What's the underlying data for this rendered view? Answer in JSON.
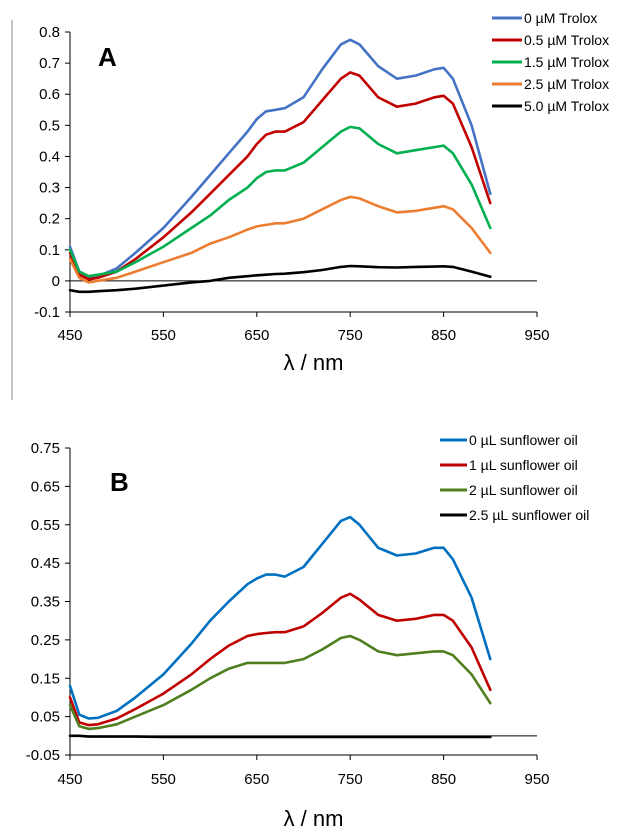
{
  "chart_data": [
    {
      "type": "line",
      "panel_label": "A",
      "xlabel": "λ / nm",
      "ylabel": "",
      "xlim": [
        450,
        950
      ],
      "ylim": [
        -0.1,
        0.8
      ],
      "x_ticks": [
        "450",
        "550",
        "650",
        "750",
        "850",
        "950"
      ],
      "y_ticks": [
        "-0.1",
        "0",
        "0.1",
        "0.2",
        "0.3",
        "0.4",
        "0.5",
        "0.6",
        "0.7",
        "0.8"
      ],
      "legend_position": "top-right",
      "grid": false,
      "x": [
        450,
        460,
        470,
        480,
        500,
        520,
        550,
        580,
        600,
        620,
        640,
        650,
        660,
        670,
        680,
        700,
        720,
        740,
        750,
        760,
        780,
        800,
        820,
        840,
        850,
        860,
        880,
        900
      ],
      "series": [
        {
          "name": "0 µM Trolox",
          "color": "#4472c4",
          "values": [
            0.11,
            0.03,
            0.01,
            0.015,
            0.04,
            0.09,
            0.17,
            0.27,
            0.34,
            0.41,
            0.48,
            0.52,
            0.545,
            0.55,
            0.555,
            0.59,
            0.68,
            0.76,
            0.775,
            0.76,
            0.69,
            0.65,
            0.66,
            0.68,
            0.685,
            0.65,
            0.5,
            0.28
          ]
        },
        {
          "name": "0.5 µM Trolox",
          "color": "#c00000",
          "values": [
            0.09,
            0.02,
            0.005,
            0.01,
            0.03,
            0.07,
            0.14,
            0.22,
            0.28,
            0.34,
            0.4,
            0.44,
            0.47,
            0.48,
            0.48,
            0.51,
            0.58,
            0.65,
            0.67,
            0.66,
            0.59,
            0.56,
            0.57,
            0.59,
            0.595,
            0.57,
            0.43,
            0.25
          ]
        },
        {
          "name": "1.5 µM Trolox",
          "color": "#00b050",
          "values": [
            0.1,
            0.03,
            0.015,
            0.02,
            0.03,
            0.06,
            0.11,
            0.17,
            0.21,
            0.26,
            0.3,
            0.33,
            0.35,
            0.355,
            0.355,
            0.38,
            0.43,
            0.48,
            0.495,
            0.49,
            0.44,
            0.41,
            0.42,
            0.43,
            0.435,
            0.41,
            0.31,
            0.17
          ]
        },
        {
          "name": "2.5 µM Trolox",
          "color": "#ed7d31",
          "values": [
            0.07,
            0.01,
            -0.005,
            0.0,
            0.01,
            0.03,
            0.06,
            0.09,
            0.12,
            0.14,
            0.165,
            0.175,
            0.18,
            0.185,
            0.185,
            0.2,
            0.23,
            0.26,
            0.27,
            0.265,
            0.24,
            0.22,
            0.225,
            0.235,
            0.24,
            0.23,
            0.17,
            0.09
          ]
        },
        {
          "name": "5.0 µM Trolox",
          "color": "#000000",
          "values": [
            -0.03,
            -0.035,
            -0.035,
            -0.033,
            -0.03,
            -0.025,
            -0.015,
            -0.005,
            0.0,
            0.01,
            0.015,
            0.018,
            0.02,
            0.022,
            0.023,
            0.028,
            0.035,
            0.045,
            0.048,
            0.047,
            0.044,
            0.043,
            0.045,
            0.046,
            0.047,
            0.045,
            0.03,
            0.013
          ]
        }
      ]
    },
    {
      "type": "line",
      "panel_label": "B",
      "xlabel": "λ / nm",
      "ylabel": "",
      "xlim": [
        450,
        950
      ],
      "ylim": [
        -0.05,
        0.75
      ],
      "x_ticks": [
        "450",
        "550",
        "650",
        "750",
        "850",
        "950"
      ],
      "y_ticks": [
        "-0.05",
        "0.05",
        "0.15",
        "0.25",
        "0.35",
        "0.45",
        "0.55",
        "0.65",
        "0.75"
      ],
      "legend_position": "top-right",
      "grid": false,
      "x": [
        450,
        460,
        470,
        480,
        500,
        520,
        550,
        580,
        600,
        620,
        640,
        650,
        660,
        670,
        680,
        700,
        720,
        740,
        750,
        760,
        780,
        800,
        820,
        840,
        850,
        860,
        880,
        900
      ],
      "series": [
        {
          "name": "0 µL sunflower oil",
          "color": "#0070c0",
          "values": [
            0.13,
            0.055,
            0.045,
            0.047,
            0.065,
            0.1,
            0.16,
            0.24,
            0.3,
            0.35,
            0.395,
            0.41,
            0.42,
            0.42,
            0.415,
            0.44,
            0.5,
            0.56,
            0.57,
            0.55,
            0.49,
            0.47,
            0.475,
            0.49,
            0.49,
            0.46,
            0.36,
            0.2
          ]
        },
        {
          "name": "1 µL sunflower oil",
          "color": "#c00000",
          "values": [
            0.1,
            0.035,
            0.028,
            0.03,
            0.045,
            0.07,
            0.11,
            0.16,
            0.2,
            0.235,
            0.26,
            0.265,
            0.268,
            0.27,
            0.27,
            0.285,
            0.32,
            0.36,
            0.37,
            0.355,
            0.315,
            0.3,
            0.305,
            0.315,
            0.315,
            0.3,
            0.23,
            0.12
          ]
        },
        {
          "name": "2 µL sunflower oil",
          "color": "#4f7f1f",
          "values": [
            0.08,
            0.025,
            0.018,
            0.02,
            0.03,
            0.05,
            0.08,
            0.12,
            0.15,
            0.175,
            0.19,
            0.19,
            0.19,
            0.19,
            0.19,
            0.2,
            0.225,
            0.255,
            0.26,
            0.25,
            0.22,
            0.21,
            0.215,
            0.22,
            0.22,
            0.21,
            0.16,
            0.085
          ]
        },
        {
          "name": "2.5 µL sunflower oil",
          "color": "#000000",
          "values": [
            0.0,
            0.0,
            -0.002,
            -0.002,
            -0.002,
            -0.002,
            -0.003,
            -0.003,
            -0.003,
            -0.003,
            -0.003,
            -0.003,
            -0.003,
            -0.003,
            -0.003,
            -0.003,
            -0.003,
            -0.003,
            -0.003,
            -0.003,
            -0.003,
            -0.003,
            -0.003,
            -0.003,
            -0.003,
            -0.003,
            -0.003,
            -0.003
          ]
        }
      ]
    }
  ]
}
